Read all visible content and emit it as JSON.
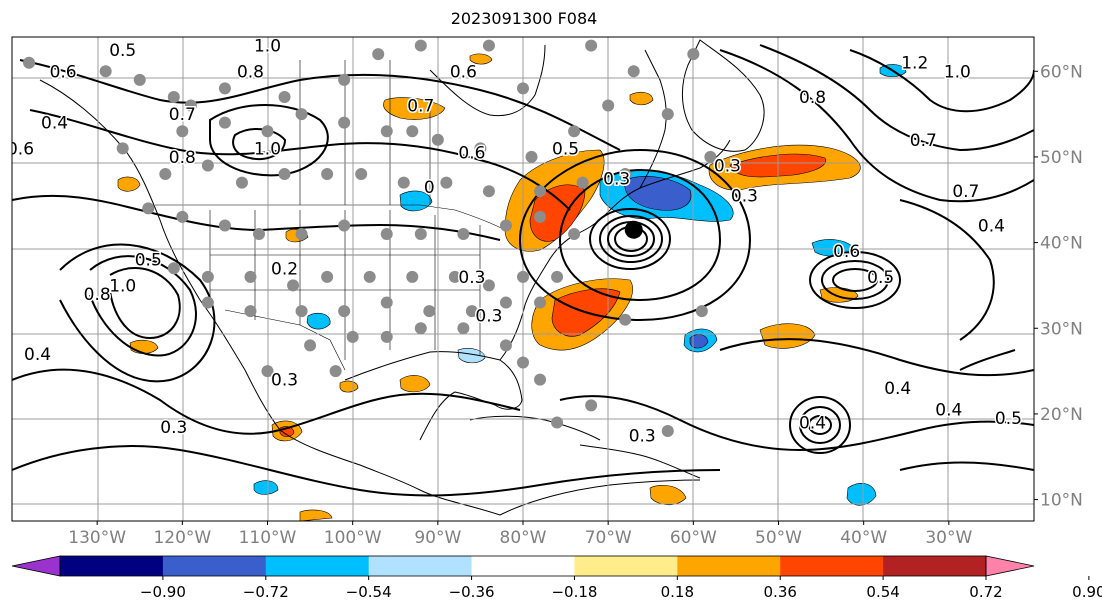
{
  "title": "2023091300 F084",
  "map": {
    "lon_range": [
      -140,
      -20
    ],
    "lat_range": [
      7.5,
      64
    ],
    "lon_ticks": [
      {
        "lon": -130,
        "label": "130°W"
      },
      {
        "lon": -120,
        "label": "120°W"
      },
      {
        "lon": -110,
        "label": "110°W"
      },
      {
        "lon": -100,
        "label": "100°W"
      },
      {
        "lon": -90,
        "label": "90°W"
      },
      {
        "lon": -80,
        "label": "80°W"
      },
      {
        "lon": -70,
        "label": "70°W"
      },
      {
        "lon": -60,
        "label": "60°W"
      },
      {
        "lon": -50,
        "label": "50°W"
      },
      {
        "lon": -40,
        "label": "40°W"
      },
      {
        "lon": -30,
        "label": "30°W"
      }
    ],
    "lat_ticks": [
      {
        "lat": 60,
        "label": "60°N"
      },
      {
        "lat": 50,
        "label": "50°N"
      },
      {
        "lat": 40,
        "label": "40°N"
      },
      {
        "lat": 30,
        "label": "30°N"
      },
      {
        "lat": 20,
        "label": "20°N"
      },
      {
        "lat": 10,
        "label": "10°N"
      }
    ],
    "storm_center": {
      "lon": -67,
      "lat": 41.5
    },
    "contour_labels": [
      {
        "text": "0.5",
        "lon": -127,
        "lat": 62.5
      },
      {
        "text": "0.6",
        "lon": -134,
        "lat": 60
      },
      {
        "text": "1.0",
        "lon": -110,
        "lat": 63
      },
      {
        "text": "0.8",
        "lon": -112,
        "lat": 60
      },
      {
        "text": "0.6",
        "lon": -87,
        "lat": 60
      },
      {
        "text": "0.7",
        "lon": -92,
        "lat": 56
      },
      {
        "text": "0.7",
        "lon": -120,
        "lat": 55
      },
      {
        "text": "0.4",
        "lon": -135,
        "lat": 54
      },
      {
        "text": "0.6",
        "lon": -139,
        "lat": 51
      },
      {
        "text": "0.8",
        "lon": -120,
        "lat": 50
      },
      {
        "text": "1.0",
        "lon": -110,
        "lat": 51
      },
      {
        "text": "0.6",
        "lon": -86,
        "lat": 50.5
      },
      {
        "text": "0.5",
        "lon": -75,
        "lat": 51
      },
      {
        "text": "0.3",
        "lon": -56,
        "lat": 49
      },
      {
        "text": "0.8",
        "lon": -46,
        "lat": 57
      },
      {
        "text": "1.2",
        "lon": -34,
        "lat": 61
      },
      {
        "text": "1.0",
        "lon": -29,
        "lat": 60
      },
      {
        "text": "0.7",
        "lon": -33,
        "lat": 52
      },
      {
        "text": "0.7",
        "lon": -28,
        "lat": 46
      },
      {
        "text": "0.4",
        "lon": -25,
        "lat": 42
      },
      {
        "text": "0.6",
        "lon": -42,
        "lat": 39
      },
      {
        "text": "0.5",
        "lon": -38,
        "lat": 36
      },
      {
        "text": "0.5",
        "lon": -124,
        "lat": 38
      },
      {
        "text": "0.8",
        "lon": -130,
        "lat": 34
      },
      {
        "text": "1.0",
        "lon": -127,
        "lat": 35
      },
      {
        "text": "0.2",
        "lon": -108,
        "lat": 37
      },
      {
        "text": "0.4",
        "lon": -137,
        "lat": 27
      },
      {
        "text": "0.3",
        "lon": -108,
        "lat": 24
      },
      {
        "text": "0.3",
        "lon": -121,
        "lat": 18.5
      },
      {
        "text": "0.3",
        "lon": -84,
        "lat": 31.5
      },
      {
        "text": "0.3",
        "lon": -86,
        "lat": 36
      },
      {
        "text": "0.4",
        "lon": -36,
        "lat": 23
      },
      {
        "text": "0.4",
        "lon": -30,
        "lat": 20.5
      },
      {
        "text": "0.4",
        "lon": -46,
        "lat": 19
      },
      {
        "text": "0.5",
        "lon": -23,
        "lat": 19.5
      },
      {
        "text": "0.3",
        "lon": -66,
        "lat": 17.5
      },
      {
        "text": "0",
        "lon": -91,
        "lat": 46.5
      },
      {
        "text": "0.3",
        "lon": -69,
        "lat": 47.5
      },
      {
        "text": "0.3",
        "lon": -54,
        "lat": 45.5
      }
    ]
  },
  "colorbar": {
    "ticks": [
      "−0.90",
      "−0.72",
      "−0.54",
      "−0.36",
      "−0.18",
      "0.18",
      "0.36",
      "0.54",
      "0.72",
      "0.90"
    ],
    "colors": [
      "#9a32cd",
      "#000080",
      "#3a5fcd",
      "#00bfff",
      "#b0e2ff",
      "#ffffff",
      "#ffec8b",
      "#ffa500",
      "#ff4500",
      "#b22222",
      "#ff82ab"
    ]
  }
}
